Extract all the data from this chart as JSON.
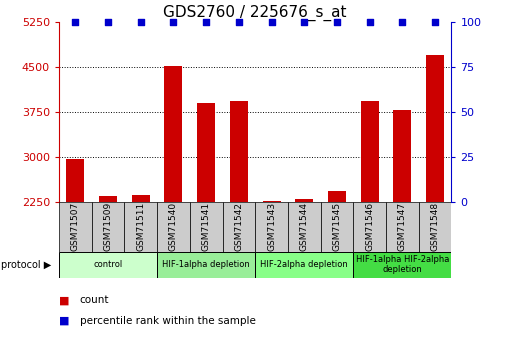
{
  "title": "GDS2760 / 225676_s_at",
  "samples": [
    "GSM71507",
    "GSM71509",
    "GSM71511",
    "GSM71540",
    "GSM71541",
    "GSM71542",
    "GSM71543",
    "GSM71544",
    "GSM71545",
    "GSM71546",
    "GSM71547",
    "GSM71548"
  ],
  "counts": [
    2970,
    2340,
    2370,
    4520,
    3900,
    3940,
    2270,
    2295,
    2430,
    3930,
    3780,
    4700
  ],
  "percentile_ranks": [
    100,
    100,
    100,
    100,
    100,
    100,
    100,
    100,
    100,
    100,
    100,
    100
  ],
  "ylim_left": [
    2250,
    5250
  ],
  "ylim_right": [
    0,
    100
  ],
  "yticks_left": [
    2250,
    3000,
    3750,
    4500,
    5250
  ],
  "yticks_right": [
    0,
    25,
    50,
    75,
    100
  ],
  "bar_color": "#cc0000",
  "dot_color": "#0000cc",
  "protocol_groups": [
    {
      "label": "control",
      "start": 0,
      "end": 2,
      "color": "#ccffcc"
    },
    {
      "label": "HIF-1alpha depletion",
      "start": 3,
      "end": 5,
      "color": "#99ee99"
    },
    {
      "label": "HIF-2alpha depletion",
      "start": 6,
      "end": 8,
      "color": "#88ff88"
    },
    {
      "label": "HIF-1alpha HIF-2alpha\ndepletion",
      "start": 9,
      "end": 11,
      "color": "#44dd44"
    }
  ],
  "tick_label_color_left": "#cc0000",
  "tick_label_color_right": "#0000cc",
  "title_fontsize": 11,
  "axis_fontsize": 8,
  "sample_fontsize": 6.5
}
